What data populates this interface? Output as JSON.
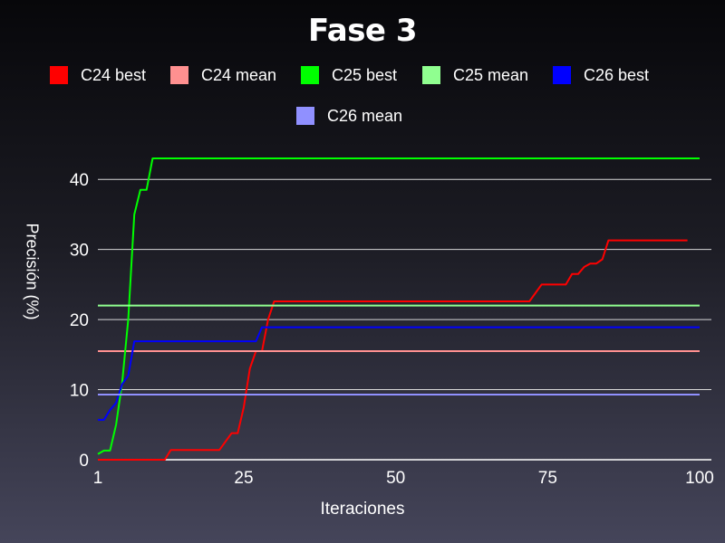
{
  "chart_data": {
    "type": "line",
    "title": "Fase 3",
    "xlabel": "Iteraciones",
    "ylabel": "Precisión (%)",
    "xlim": [
      1,
      100
    ],
    "ylim": [
      0,
      43
    ],
    "x_ticks": [
      1,
      25,
      50,
      75,
      100
    ],
    "y_ticks": [
      0,
      10,
      20,
      30,
      40
    ],
    "grid": "horizontal",
    "legend_position": "top",
    "series": [
      {
        "name": "C24 best",
        "color": "#ff0000",
        "points": [
          [
            1,
            0
          ],
          [
            12,
            0
          ],
          [
            13,
            1.4
          ],
          [
            21,
            1.4
          ],
          [
            23,
            3.8
          ],
          [
            24,
            3.8
          ],
          [
            25,
            7.5
          ],
          [
            26,
            13
          ],
          [
            27,
            15.5
          ],
          [
            28,
            15.5
          ],
          [
            29,
            20
          ],
          [
            30,
            22.6
          ],
          [
            72,
            22.6
          ],
          [
            74,
            25
          ],
          [
            78,
            25
          ],
          [
            79,
            26.5
          ],
          [
            80,
            26.5
          ],
          [
            81,
            27.5
          ],
          [
            82,
            28
          ],
          [
            83,
            28
          ],
          [
            84,
            28.6
          ],
          [
            85,
            31.3
          ],
          [
            98,
            31.3
          ]
        ]
      },
      {
        "name": "C24 mean",
        "color": "#ff9090",
        "points": [
          [
            1,
            15.5
          ],
          [
            100,
            15.5
          ]
        ]
      },
      {
        "name": "C25 best",
        "color": "#00ff00",
        "points": [
          [
            1,
            0.8
          ],
          [
            2,
            1.3
          ],
          [
            3,
            1.3
          ],
          [
            4,
            5
          ],
          [
            5,
            11
          ],
          [
            6,
            20
          ],
          [
            7,
            35
          ],
          [
            8,
            38.5
          ],
          [
            9,
            38.5
          ],
          [
            10,
            43
          ],
          [
            100,
            43
          ]
        ]
      },
      {
        "name": "C25 mean",
        "color": "#90ff90",
        "points": [
          [
            1,
            22
          ],
          [
            100,
            22
          ]
        ]
      },
      {
        "name": "C26 best",
        "color": "#0000ff",
        "points": [
          [
            1,
            5.7
          ],
          [
            2,
            5.7
          ],
          [
            3,
            7.1
          ],
          [
            4,
            8.1
          ],
          [
            5,
            10.8
          ],
          [
            6,
            12
          ],
          [
            7,
            16.9
          ],
          [
            27,
            16.9
          ],
          [
            28,
            18.9
          ],
          [
            100,
            18.9
          ]
        ]
      },
      {
        "name": "C26 mean",
        "color": "#9090ff",
        "points": [
          [
            1,
            9.3
          ],
          [
            100,
            9.3
          ]
        ]
      }
    ]
  }
}
